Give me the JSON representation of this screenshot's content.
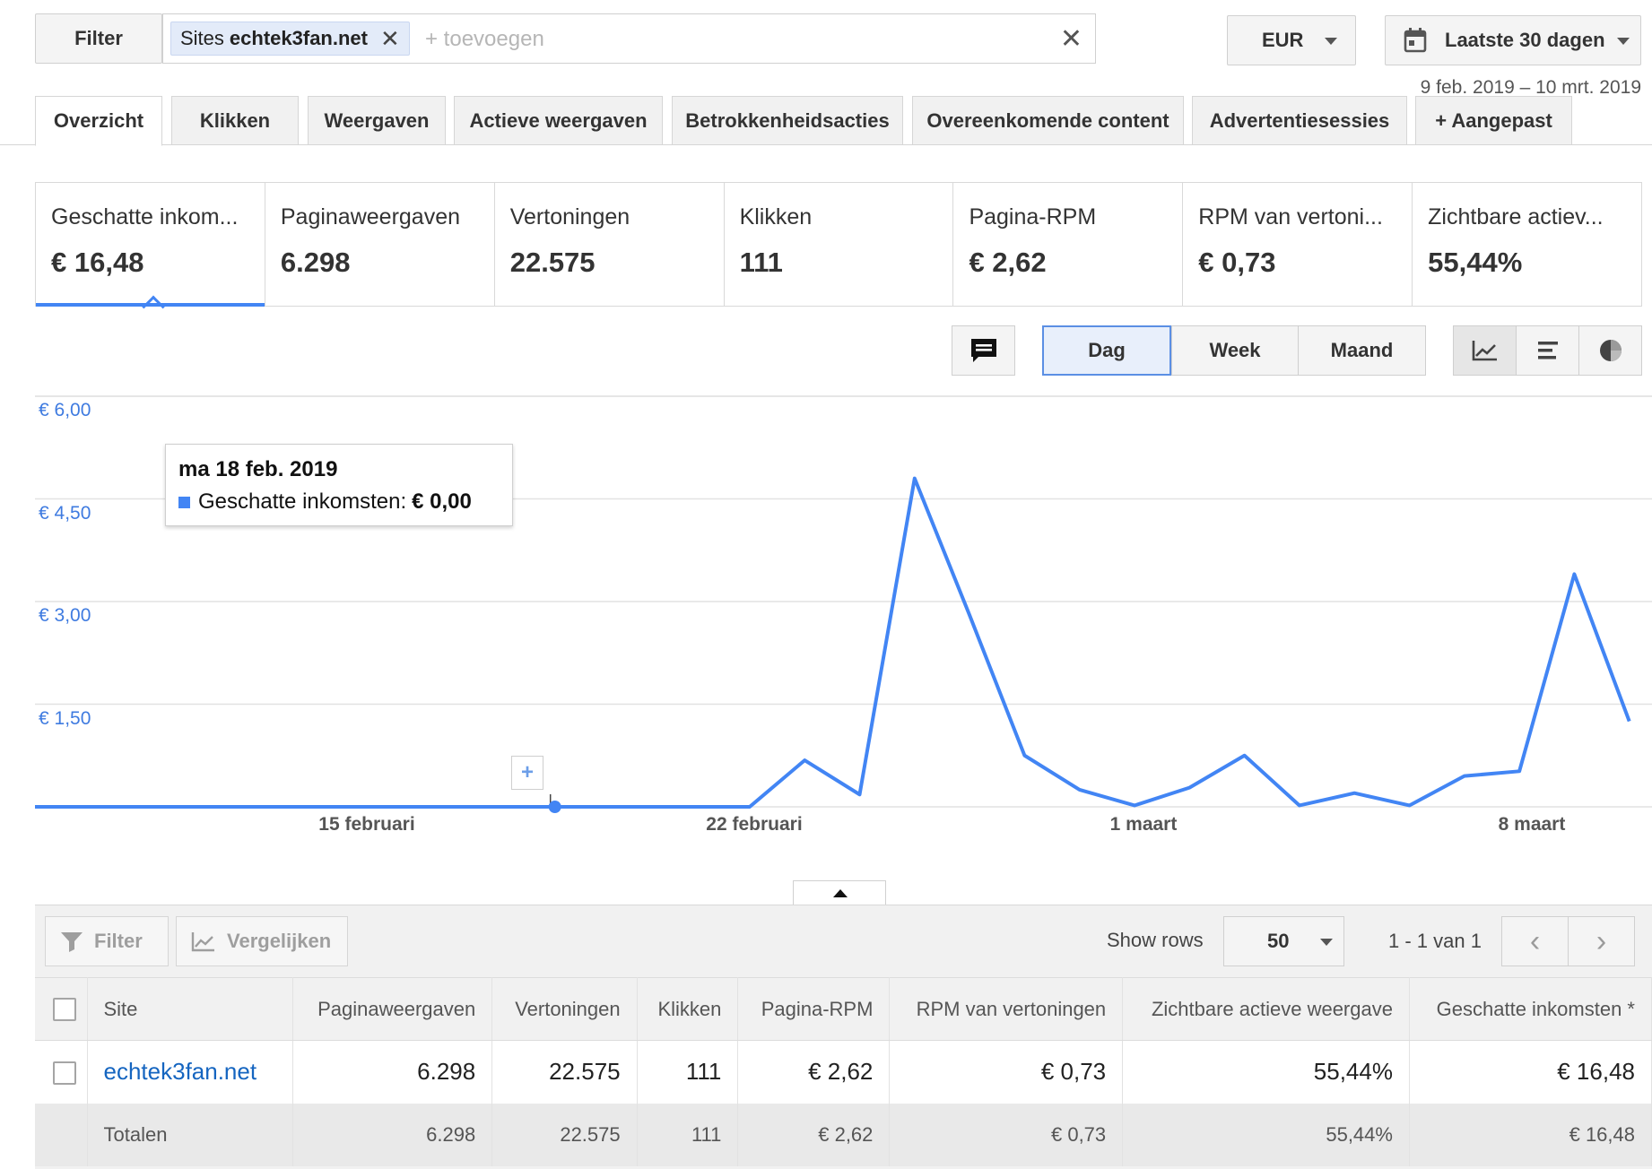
{
  "filter": {
    "button_label": "Filter",
    "chip_label": "Sites",
    "chip_value": "echtek3fan.net",
    "placeholder": "+ toevoegen"
  },
  "currency": {
    "selected": "EUR"
  },
  "date_range": {
    "label": "Laatste 30 dagen",
    "sub": "9 feb. 2019 – 10 mrt. 2019"
  },
  "tabs": [
    {
      "label": "Overzicht",
      "active": true
    },
    {
      "label": "Klikken"
    },
    {
      "label": "Weergaven"
    },
    {
      "label": "Actieve weergaven"
    },
    {
      "label": "Betrokkenheidsacties"
    },
    {
      "label": "Overeenkomende content"
    },
    {
      "label": "Advertentiesessies"
    },
    {
      "label": "+ Aangepast"
    }
  ],
  "scorecards": [
    {
      "label": "Geschatte inkom...",
      "value": "€ 16,48",
      "selected": true
    },
    {
      "label": "Paginaweergaven",
      "value": "6.298"
    },
    {
      "label": "Vertoningen",
      "value": "22.575"
    },
    {
      "label": "Klikken",
      "value": "111"
    },
    {
      "label": "Pagina-RPM",
      "value": "€ 2,62"
    },
    {
      "label": "RPM van vertoni...",
      "value": "€ 0,73"
    },
    {
      "label": "Zichtbare actiev...",
      "value": "55,44%"
    }
  ],
  "granularity": {
    "day": "Dag",
    "week": "Week",
    "month": "Maand",
    "selected": "Dag"
  },
  "chart_view": {
    "selected": "line"
  },
  "tooltip": {
    "date": "ma 18 feb. 2019",
    "series": "Geschatte inkomsten:",
    "value": "€ 0,00"
  },
  "chart_data": {
    "type": "line",
    "series": [
      {
        "name": "Geschatte inkomsten",
        "color": "#4285f4",
        "x": [
          "9 feb.",
          "10 feb.",
          "11 feb.",
          "12 feb.",
          "13 feb.",
          "14 feb.",
          "15 feb.",
          "16 feb.",
          "17 feb.",
          "18 feb.",
          "19 feb.",
          "20 feb.",
          "21 feb.",
          "22 feb.",
          "23 feb.",
          "24 feb.",
          "25 feb.",
          "26 feb.",
          "27 feb.",
          "28 feb.",
          "1 mrt.",
          "2 mrt.",
          "3 mrt.",
          "4 mrt.",
          "5 mrt.",
          "6 mrt.",
          "7 mrt.",
          "8 mrt.",
          "9 mrt.",
          "10 mrt."
        ],
        "values": [
          0,
          0,
          0,
          0,
          0,
          0,
          0,
          0,
          0,
          0,
          0,
          0,
          0,
          0,
          0.68,
          0.18,
          4.8,
          2.8,
          0.75,
          0.25,
          0.02,
          0.28,
          0.75,
          0.02,
          0.2,
          0.02,
          0.45,
          0.52,
          3.4,
          1.25
        ]
      }
    ],
    "yticks": [
      "€ 6,00",
      "€ 4,50",
      "€ 3,00",
      "€ 1,50"
    ],
    "ytick_values": [
      6,
      4.5,
      3,
      1.5
    ],
    "ylim": [
      0,
      6
    ],
    "xticks": [
      {
        "label": "15 februari",
        "index": 6
      },
      {
        "label": "22 februari",
        "index": 13
      },
      {
        "label": "1 maart",
        "index": 20
      },
      {
        "label": "8 maart",
        "index": 27
      }
    ],
    "highlight_index": 9,
    "grid": true
  },
  "toolbar": {
    "filter": "Filter",
    "compare": "Vergelijken",
    "show_rows": "Show rows",
    "rows": "50",
    "page_info": "1 - 1 van 1"
  },
  "table": {
    "headers": [
      "Site",
      "Paginaweergaven",
      "Vertoningen",
      "Klikken",
      "Pagina-RPM",
      "RPM van vertoningen",
      "Zichtbare actieve weergave",
      "Geschatte inkomsten *"
    ],
    "rows": [
      [
        "echtek3fan.net",
        "6.298",
        "22.575",
        "111",
        "€ 2,62",
        "€ 0,73",
        "55,44%",
        "€ 16,48"
      ]
    ],
    "totals": [
      "Totalen",
      "6.298",
      "22.575",
      "111",
      "€ 2,62",
      "€ 0,73",
      "55,44%",
      "€ 16,48"
    ]
  }
}
